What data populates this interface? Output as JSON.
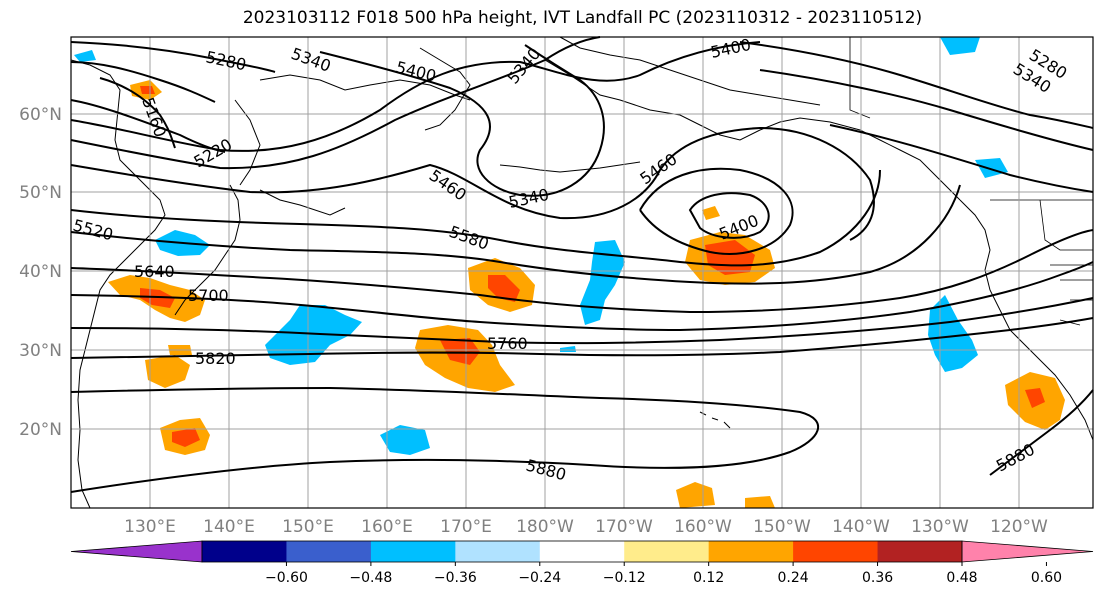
{
  "title": "2023103112 F018 500 hPa height, IVT Landfall PC (2023110312 - 2023110512)",
  "map": {
    "lat_labels": [
      "60°N",
      "50°N",
      "40°N",
      "30°N",
      "20°N"
    ],
    "lon_labels": [
      "130°E",
      "140°E",
      "150°E",
      "160°E",
      "170°E",
      "180°W",
      "170°W",
      "160°W",
      "150°W",
      "140°W",
      "130°W",
      "120°W"
    ],
    "contour_labels": [
      "5280",
      "5340",
      "5400",
      "5340",
      "5400",
      "5280",
      "5340",
      "5160",
      "5220",
      "5460",
      "5340",
      "5460",
      "5520",
      "5580",
      "5400",
      "5640",
      "5700",
      "5760",
      "5820",
      "5880",
      "5880"
    ]
  },
  "colorbar": {
    "ticks": [
      "−0.60",
      "−0.48",
      "−0.36",
      "−0.24",
      "−0.12",
      "0.12",
      "0.24",
      "0.36",
      "0.48",
      "0.60"
    ],
    "colors": [
      "#9932CC",
      "#00008B",
      "#3A5FCD",
      "#00BFFF",
      "#B0E2FF",
      "#FFFFFF",
      "#FFEC8B",
      "#FFA500",
      "#FF4500",
      "#B22222",
      "#FF82AB"
    ]
  }
}
